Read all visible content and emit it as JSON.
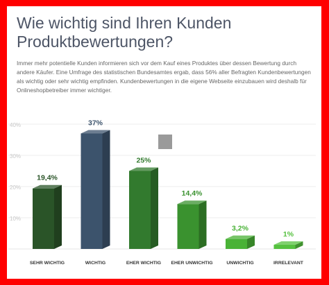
{
  "header": {
    "title": "Wie wichtig sind Ihren Kunden Produktbewertungen?",
    "intro": "Immer mehr potentielle Kunden informieren sich vor dem Kauf eines Produktes über dessen Bewertung durch andere Käufer. Eine Umfrage des statistischen Bundesamtes ergab, dass 56% aller Befragten Kundenbewertungen als wichtig oder sehr wichtig empfinden. Kundenbewertungen in die eigene Webseite einzubauen wird deshalb für Onlineshopbetreiber immer wichtiger."
  },
  "colors": {
    "frame": "#ff0000",
    "bars": [
      "#2a5428",
      "#3c536c",
      "#327a2e",
      "#3a922f",
      "#49b236",
      "#55c13f"
    ]
  },
  "chart_data": {
    "type": "bar",
    "categories": [
      "SEHR WICHTIG",
      "WICHTIG",
      "EHER WICHTIG",
      "EHER UNWICHTIG",
      "UNWICHTIG",
      "IRRELEVANT"
    ],
    "values": [
      19.4,
      37,
      25,
      14.4,
      3.2,
      1
    ],
    "value_labels": [
      "19,4%",
      "37%",
      "25%",
      "14,4%",
      "3,2%",
      "1%"
    ],
    "yticks": [
      "40%",
      "30%",
      "20%",
      "10%"
    ],
    "ytick_values": [
      40,
      30,
      20,
      10
    ],
    "ylim": [
      0,
      40
    ],
    "grid": true,
    "bar_style": "3d",
    "title": "",
    "xlabel": "",
    "ylabel": ""
  }
}
